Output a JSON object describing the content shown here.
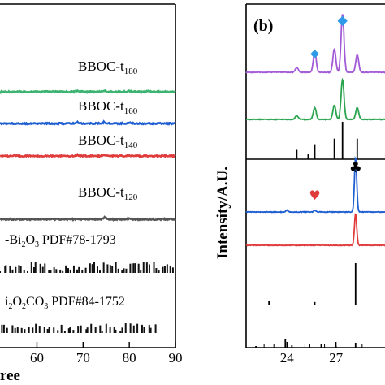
{
  "chart_data": [
    {
      "type": "line",
      "panel": "a",
      "xlabel": "ree",
      "xlim": [
        52,
        90
      ],
      "x_ticks": [
        "60",
        "70",
        "80",
        "90"
      ],
      "series": [
        {
          "name": "BBOC-t180",
          "base": "BBOC-t",
          "sub": "180",
          "color": "#3cb371",
          "peaks": [
            [
              68.8,
              0.25
            ],
            [
              74.6,
              0.3
            ],
            [
              80.0,
              0.2
            ],
            [
              84.2,
              0.2
            ]
          ]
        },
        {
          "name": "BBOC-t160",
          "base": "BBOC-t",
          "sub": "160",
          "color": "#1f5fd1",
          "peaks": [
            [
              68.8,
              0.25
            ],
            [
              74.6,
              0.3
            ],
            [
              80.0,
              0.2
            ]
          ]
        },
        {
          "name": "BBOC-t140",
          "base": "BBOC-t",
          "sub": "140",
          "color": "#e03c3c",
          "peaks": [
            [
              68.8,
              0.25
            ],
            [
              74.6,
              0.3
            ]
          ]
        },
        {
          "name": "BBOC-t120",
          "base": "BBOC-t",
          "sub": "120",
          "color": "#555555",
          "peaks": [
            [
              74.6,
              0.4
            ],
            [
              80.0,
              0.25
            ]
          ]
        }
      ],
      "references": [
        {
          "label_parts": [
            "-Bi",
            "2",
            "O",
            "3",
            " PDF#78-1793"
          ],
          "color": "#111111",
          "x_start": 52,
          "x_end": 90,
          "density": 60
        },
        {
          "label_parts": [
            "i",
            "2",
            "O",
            "2",
            "CO",
            "3",
            " PDF#84-1752"
          ],
          "color": "#111111",
          "x_start": 52,
          "x_end": 86,
          "density": 45
        }
      ]
    },
    {
      "type": "line",
      "panel": "b",
      "panel_label": "(b)",
      "ylabel": "Intensity/A.U.",
      "xlim": [
        21.5,
        30
      ],
      "x_ticks": [
        "24",
        "27"
      ],
      "series": [
        {
          "name": "purple",
          "color": "#a25bd6",
          "peaks": [
            [
              24.6,
              0.08
            ],
            [
              25.7,
              0.35
            ],
            [
              26.9,
              0.4
            ],
            [
              27.4,
              1.0
            ],
            [
              28.3,
              0.3
            ]
          ]
        },
        {
          "name": "green",
          "color": "#2aa44f",
          "peaks": [
            [
              24.6,
              0.08
            ],
            [
              25.7,
              0.25
            ],
            [
              26.9,
              0.3
            ],
            [
              27.4,
              0.85
            ],
            [
              28.3,
              0.25
            ]
          ]
        },
        {
          "name": "blue",
          "color": "#1f5fd1",
          "peaks": [
            [
              24.0,
              0.03
            ],
            [
              25.7,
              0.03
            ],
            [
              28.2,
              1.0
            ]
          ]
        },
        {
          "name": "red",
          "color": "#e03c3c",
          "peaks": [
            [
              28.2,
              0.8
            ]
          ]
        }
      ],
      "reference_sticks_upper": [
        [
          24.6,
          0.25
        ],
        [
          25.3,
          0.15
        ],
        [
          25.7,
          0.4
        ],
        [
          26.9,
          0.55
        ],
        [
          27.4,
          1.0
        ],
        [
          28.3,
          0.55
        ]
      ],
      "reference_sticks_lower": [
        [
          22.9,
          0.1
        ],
        [
          25.7,
          0.08
        ],
        [
          28.2,
          1.0
        ]
      ],
      "reference_sticks_bottom": [
        [
          22.1,
          0.1
        ],
        [
          23.9,
          0.55
        ],
        [
          24.3,
          0.15
        ],
        [
          26.1,
          0.2
        ],
        [
          27.0,
          0.1
        ],
        [
          28.2,
          0.3
        ]
      ],
      "markers": [
        {
          "symbol": "◆",
          "color": "#2f9be8",
          "x": 25.7
        },
        {
          "symbol": "◆",
          "color": "#2f9be8",
          "x": 27.4
        },
        {
          "symbol": "♣",
          "color": "#000000",
          "x": 28.2
        },
        {
          "symbol": "♥",
          "color": "#e03c3c",
          "x": 25.7
        }
      ]
    }
  ]
}
